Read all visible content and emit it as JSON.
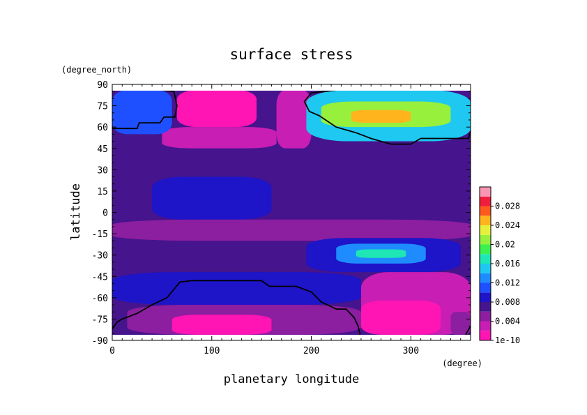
{
  "chart_data": {
    "type": "heatmap",
    "title": "surface stress",
    "xlabel": "planetary longitude",
    "ylabel": "latitude",
    "xunit": "(degree)",
    "yunit": "(degree_north)",
    "xlim": [
      0,
      360
    ],
    "ylim": [
      -90,
      90
    ],
    "x_ticks": [
      "0",
      "100",
      "200",
      "300"
    ],
    "y_ticks": [
      "90",
      "75",
      "60",
      "45",
      "30",
      "15",
      "0",
      "-15",
      "-30",
      "-45",
      "-60",
      "-75",
      "-90"
    ],
    "colorbar": {
      "tick_labels": [
        "0.028",
        "0.024",
        "0.02",
        "0.016",
        "0.012",
        "0.008",
        "0.004",
        "1e-10"
      ],
      "levels": [
        1e-10,
        0.002,
        0.004,
        0.006,
        0.008,
        0.01,
        0.012,
        0.014,
        0.016,
        0.018,
        0.02,
        0.022,
        0.024,
        0.026,
        0.028,
        0.03
      ],
      "colors": [
        "#ff14b4",
        "#c81eb4",
        "#8c1ea0",
        "#46148c",
        "#1e14c8",
        "#1e50ff",
        "#1e8cff",
        "#1ec8f0",
        "#1ee6b4",
        "#3cf050",
        "#96f03c",
        "#e6f03c",
        "#ffb41e",
        "#ff5a1e",
        "#f01e3c",
        "#fa96b4"
      ]
    },
    "regions": [
      {
        "lon": [
          65,
          145
        ],
        "lat": [
          60,
          86
        ],
        "value": 0.0001
      },
      {
        "lon": [
          50,
          165
        ],
        "lat": [
          45,
          60
        ],
        "value": 0.003
      },
      {
        "lon": [
          165,
          200
        ],
        "lat": [
          45,
          86
        ],
        "value": 0.003
      },
      {
        "lon": [
          0,
          60
        ],
        "lat": [
          55,
          86
        ],
        "value": 0.011
      },
      {
        "lon": [
          195,
          360
        ],
        "lat": [
          50,
          86
        ],
        "value": 0.015
      },
      {
        "lon": [
          210,
          340
        ],
        "lat": [
          60,
          78
        ],
        "value": 0.021
      },
      {
        "lon": [
          240,
          300
        ],
        "lat": [
          63,
          72
        ],
        "value": 0.025
      },
      {
        "lon": [
          0,
          360
        ],
        "lat": [
          18,
          45
        ],
        "value": 0.007
      },
      {
        "lon": [
          40,
          160
        ],
        "lat": [
          -5,
          25
        ],
        "value": 0.008
      },
      {
        "lon": [
          0,
          360
        ],
        "lat": [
          -20,
          -5
        ],
        "value": 0.005
      },
      {
        "lon": [
          195,
          350
        ],
        "lat": [
          -42,
          -18
        ],
        "value": 0.009
      },
      {
        "lon": [
          225,
          315
        ],
        "lat": [
          -36,
          -22
        ],
        "value": 0.013
      },
      {
        "lon": [
          245,
          295
        ],
        "lat": [
          -32,
          -26
        ],
        "value": 0.016
      },
      {
        "lon": [
          0,
          250
        ],
        "lat": [
          -65,
          -42
        ],
        "value": 0.009
      },
      {
        "lon": [
          15,
          250
        ],
        "lat": [
          -86,
          -65
        ],
        "value": 0.004
      },
      {
        "lon": [
          60,
          160
        ],
        "lat": [
          -86,
          -72
        ],
        "value": 0.0001
      },
      {
        "lon": [
          250,
          360
        ],
        "lat": [
          -86,
          -42
        ],
        "value": 0.003
      },
      {
        "lon": [
          250,
          330
        ],
        "lat": [
          -86,
          -62
        ],
        "value": 0.0001
      },
      {
        "lon": [
          340,
          360
        ],
        "lat": [
          -86,
          -70
        ],
        "value": 0.005
      }
    ],
    "contours": [
      [
        [
          0,
          59
        ],
        [
          25,
          59
        ],
        [
          27,
          63
        ],
        [
          48,
          63
        ],
        [
          52,
          67
        ],
        [
          63,
          67
        ],
        [
          65,
          75
        ],
        [
          62,
          85
        ],
        [
          50,
          86
        ]
      ],
      [
        [
          225,
          86
        ],
        [
          200,
          84
        ],
        [
          193,
          78
        ],
        [
          198,
          71
        ],
        [
          208,
          68
        ],
        [
          225,
          60
        ],
        [
          245,
          56
        ],
        [
          260,
          52
        ],
        [
          280,
          48
        ],
        [
          300,
          48
        ],
        [
          310,
          52
        ],
        [
          358,
          52
        ],
        [
          360,
          57
        ]
      ],
      [
        [
          0,
          -82
        ],
        [
          5,
          -77
        ],
        [
          10,
          -75
        ],
        [
          25,
          -71
        ],
        [
          40,
          -65
        ],
        [
          55,
          -60
        ],
        [
          68,
          -49
        ],
        [
          80,
          -48
        ],
        [
          150,
          -48
        ],
        [
          158,
          -52
        ],
        [
          185,
          -52
        ],
        [
          200,
          -56
        ],
        [
          210,
          -63
        ],
        [
          225,
          -68
        ],
        [
          235,
          -68
        ],
        [
          243,
          -74
        ],
        [
          247,
          -80
        ],
        [
          249,
          -86
        ]
      ],
      [
        [
          355,
          -86
        ],
        [
          360,
          -80
        ]
      ]
    ]
  }
}
